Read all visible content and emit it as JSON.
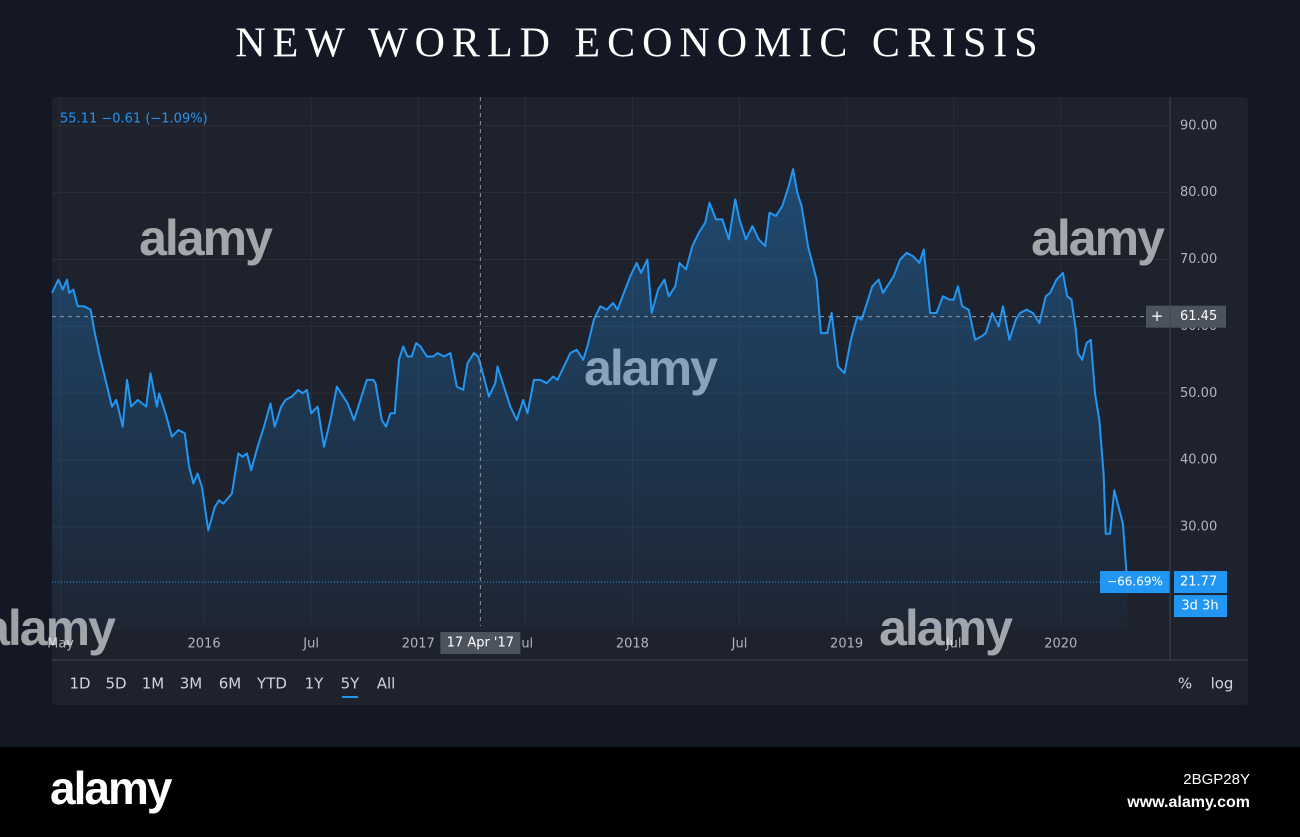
{
  "title": "NEW WORLD ECONOMIC CRISIS",
  "chart_data": {
    "type": "line",
    "legend_text": "55.11 −0.61 (−1.09%)",
    "color": "#2196f3",
    "grid": true,
    "x": [
      2015.29,
      2015.32,
      2015.34,
      2015.36,
      2015.37,
      2015.39,
      2015.41,
      2015.44,
      2015.47,
      2015.49,
      2015.51,
      2015.54,
      2015.57,
      2015.59,
      2015.62,
      2015.64,
      2015.66,
      2015.69,
      2015.73,
      2015.75,
      2015.78,
      2015.79,
      2015.82,
      2015.85,
      2015.88,
      2015.91,
      2015.93,
      2015.95,
      2015.97,
      2015.99,
      2016.02,
      2016.05,
      2016.07,
      2016.09,
      2016.13,
      2016.16,
      2016.18,
      2016.2,
      2016.22,
      2016.25,
      2016.28,
      2016.31,
      2016.33,
      2016.36,
      2016.38,
      2016.41,
      2016.44,
      2016.46,
      2016.48,
      2016.5,
      2016.53,
      2016.56,
      2016.59,
      2016.62,
      2016.64,
      2016.67,
      2016.7,
      2016.73,
      2016.76,
      2016.79,
      2016.8,
      2016.83,
      2016.85,
      2016.87,
      2016.89,
      2016.91,
      2016.93,
      2016.95,
      2016.97,
      2016.99,
      2017.01,
      2017.04,
      2017.07,
      2017.09,
      2017.12,
      2017.15,
      2017.18,
      2017.21,
      2017.23,
      2017.26,
      2017.28,
      2017.31,
      2017.33,
      2017.36,
      2017.37,
      2017.4,
      2017.43,
      2017.46,
      2017.49,
      2017.51,
      2017.54,
      2017.57,
      2017.6,
      2017.63,
      2017.65,
      2017.68,
      2017.71,
      2017.74,
      2017.77,
      2017.79,
      2017.82,
      2017.85,
      2017.88,
      2017.91,
      2017.93,
      2017.96,
      2017.99,
      2018.02,
      2018.04,
      2018.07,
      2018.09,
      2018.12,
      2018.15,
      2018.17,
      2018.2,
      2018.22,
      2018.25,
      2018.28,
      2018.31,
      2018.34,
      2018.36,
      2018.39,
      2018.42,
      2018.45,
      2018.48,
      2018.5,
      2018.53,
      2018.56,
      2018.59,
      2018.62,
      2018.64,
      2018.67,
      2018.7,
      2018.73,
      2018.75,
      2018.77,
      2018.79,
      2018.82,
      2018.86,
      2018.88,
      2018.91,
      2018.93,
      2018.96,
      2018.99,
      2019.02,
      2019.05,
      2019.07,
      2019.09,
      2019.12,
      2019.15,
      2019.17,
      2019.2,
      2019.22,
      2019.25,
      2019.28,
      2019.31,
      2019.34,
      2019.36,
      2019.39,
      2019.42,
      2019.45,
      2019.48,
      2019.5,
      2019.52,
      2019.54,
      2019.57,
      2019.6,
      2019.63,
      2019.65,
      2019.68,
      2019.71,
      2019.73,
      2019.76,
      2019.79,
      2019.81,
      2019.84,
      2019.87,
      2019.9,
      2019.93,
      2019.95,
      2019.98,
      2020.01,
      2020.03,
      2020.05,
      2020.07,
      2020.08,
      2020.1,
      2020.12,
      2020.14,
      2020.16,
      2020.18,
      2020.2,
      2020.21,
      2020.23,
      2020.25,
      2020.27,
      2020.29,
      2020.31
    ],
    "values": [
      65,
      67,
      65.5,
      67,
      65,
      65.5,
      63,
      63,
      62.5,
      59,
      56,
      52,
      48,
      49,
      45,
      52,
      48,
      49,
      48,
      53,
      48,
      50,
      47,
      43.5,
      44.5,
      44,
      39,
      36.5,
      38,
      36,
      29.5,
      33,
      34,
      33.5,
      35,
      41,
      40.5,
      41,
      38.5,
      42,
      45,
      48.5,
      45,
      48,
      49,
      49.5,
      50.5,
      50,
      50.5,
      47,
      48,
      42,
      46,
      51,
      50,
      48.5,
      46,
      49,
      52,
      52,
      51.5,
      46,
      45,
      47,
      47,
      55,
      57,
      55.5,
      55.5,
      57.5,
      57,
      55.5,
      55.5,
      56,
      55.5,
      56,
      51,
      50.5,
      54.5,
      56,
      55.5,
      52,
      49.5,
      51.5,
      54,
      51,
      48,
      46,
      49,
      47,
      52,
      52,
      51.5,
      52.5,
      52,
      54,
      56,
      56.5,
      55,
      57,
      61,
      63,
      62.5,
      63.5,
      62.5,
      65,
      67.5,
      69.5,
      68,
      70,
      62,
      65.5,
      67,
      64.5,
      66,
      69.5,
      68.5,
      72,
      74,
      75.5,
      78.5,
      76,
      76,
      73,
      79,
      76,
      73,
      75,
      73,
      72,
      77,
      76.5,
      78,
      81,
      83.5,
      80,
      78,
      72,
      67,
      59,
      59,
      62,
      54,
      53,
      58,
      61.5,
      61,
      63,
      66,
      67,
      65,
      66.5,
      67.5,
      70,
      71,
      70.5,
      69.5,
      71.5,
      62,
      62,
      64.5,
      64,
      64,
      66,
      63,
      62.5,
      58,
      58.5,
      59,
      62,
      60,
      63,
      58,
      61,
      62,
      62.5,
      62,
      60.5,
      64.5,
      65,
      67,
      68,
      64.5,
      64,
      59.5,
      56,
      55,
      57.5,
      58,
      50,
      46,
      38,
      29,
      29,
      35.5,
      33,
      30.5,
      21.77
    ],
    "xlim": [
      2015.29,
      2020.51
    ],
    "ylim": [
      14.6,
      94.3
    ],
    "xticks": [
      {
        "value": 2015.33,
        "label": "May"
      },
      2016,
      {
        "value": 2016.5,
        "label": "Jul"
      },
      2017,
      {
        "value": 2017.5,
        "label": "Jul"
      },
      2018,
      {
        "value": 2018.5,
        "label": "Jul"
      },
      2019,
      {
        "value": 2019.5,
        "label": "Jul"
      },
      2020
    ],
    "yticks": [
      {
        "value": 30,
        "label": "30.00"
      },
      {
        "value": 40,
        "label": "40.00"
      },
      {
        "value": 50,
        "label": "50.00"
      },
      {
        "value": 60,
        "label": "60.00"
      },
      {
        "value": 70,
        "label": "70.00"
      },
      {
        "value": 80,
        "label": "80.00"
      },
      {
        "value": 90,
        "label": "90.00"
      }
    ],
    "crosshair": {
      "x": {
        "value": 2017.29,
        "label": "17 Apr '17"
      },
      "y": 61.45
    },
    "last": {
      "value": 21.77,
      "change": "−66.69%",
      "countdown": "3d 3h"
    }
  },
  "toolbar": {
    "ranges": [
      "1D",
      "5D",
      "1M",
      "3M",
      "6M",
      "YTD",
      "1Y",
      "5Y",
      "All"
    ],
    "selected": 7,
    "options": [
      "%",
      "log"
    ]
  },
  "watermark": "alamy",
  "footer": {
    "brand": "alamy",
    "image_id": "2BGP28Y",
    "url": "www.alamy.com"
  }
}
